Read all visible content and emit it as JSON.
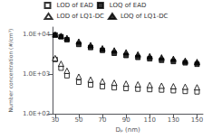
{
  "chart_data": {
    "type": "scatter",
    "xlabel": "Dₚ (nm)",
    "ylabel": "Number concentration (#/cm³)",
    "x": [
      30,
      35,
      40,
      50,
      60,
      70,
      80,
      90,
      100,
      110,
      120,
      130,
      140,
      150
    ],
    "series": [
      {
        "name": "LOD of EAD",
        "color": "#000000",
        "marker": "square-open",
        "values": [
          2300,
          1400,
          900,
          620,
          530,
          480,
          450,
          430,
          415,
          405,
          395,
          380,
          365,
          355
        ]
      },
      {
        "name": "LOQ of EAD",
        "color": "#000000",
        "marker": "square",
        "values": [
          9500,
          8600,
          7200,
          5500,
          4600,
          3900,
          3300,
          2900,
          2600,
          2400,
          2200,
          2050,
          1900,
          1750
        ]
      },
      {
        "name": "LOD of LQ1-DC",
        "color": "#000000",
        "marker": "triangle-open",
        "values": [
          2500,
          1800,
          1200,
          850,
          720,
          650,
          600,
          570,
          545,
          525,
          505,
          490,
          475,
          460
        ]
      },
      {
        "name": "LOQ of LQ1-DC",
        "color": "#000000",
        "marker": "triangle",
        "values": [
          9800,
          9000,
          8000,
          6500,
          5300,
          4400,
          3900,
          3500,
          3100,
          2800,
          2600,
          2400,
          2150,
          2000
        ]
      }
    ],
    "xlim": [
      28,
      155
    ],
    "xticks": [
      30,
      50,
      70,
      90,
      110,
      130,
      150
    ],
    "ylim": [
      100,
      15000
    ],
    "yticks": [
      {
        "value": 100,
        "label": "1.0E+02"
      },
      {
        "value": 1000,
        "label": "1.0E+03"
      },
      {
        "value": 10000,
        "label": "1.0E+04"
      }
    ],
    "log": "y",
    "grid": false,
    "legend": "top"
  }
}
